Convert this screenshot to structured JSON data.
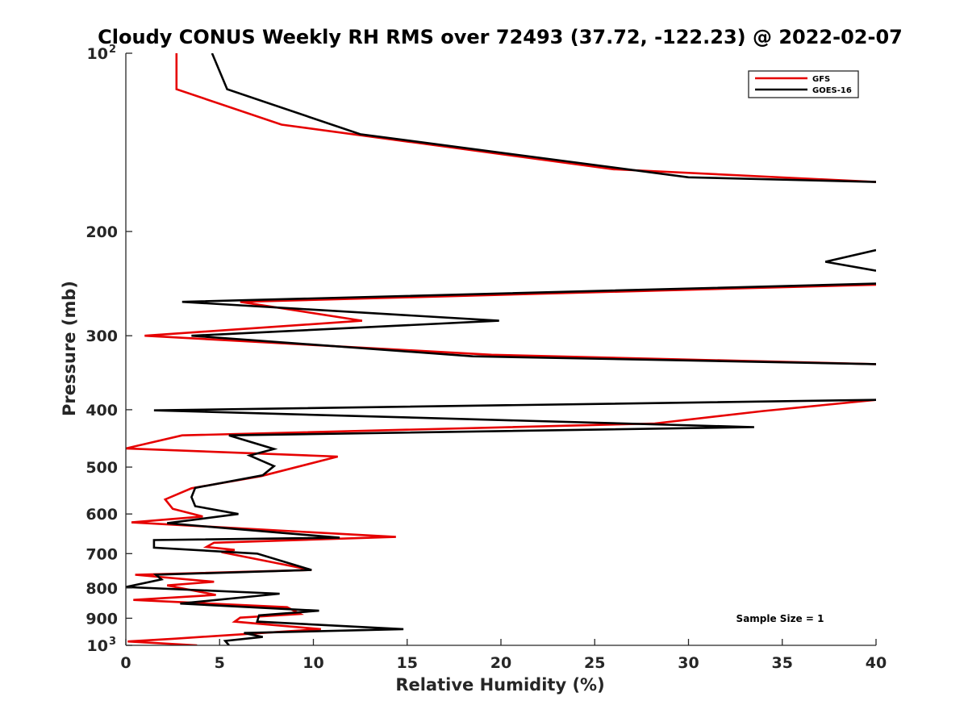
{
  "chart_data": {
    "type": "line",
    "title": "Cloudy CONUS Weekly RH RMS over 72493 (37.72, -122.23) @ 2022-02-07",
    "xlabel": "Relative Humidity (%)",
    "ylabel": "Pressure (mb)",
    "xlim": [
      0,
      40
    ],
    "ylim": [
      100,
      1000
    ],
    "y_scale": "log",
    "y_reversed": true,
    "x_ticks": [
      0,
      5,
      10,
      15,
      20,
      25,
      30,
      35,
      40
    ],
    "x_tick_labels": [
      "0",
      "5",
      "10",
      "15",
      "20",
      "25",
      "30",
      "35",
      "40"
    ],
    "y_ticks": [
      100,
      200,
      300,
      400,
      500,
      600,
      700,
      800,
      900,
      1000
    ],
    "y_tick_labels": [
      {
        "base": "10",
        "exp": "2"
      },
      {
        "text": "200"
      },
      {
        "text": "300"
      },
      {
        "text": "400"
      },
      {
        "text": "500"
      },
      {
        "text": "600"
      },
      {
        "text": "700"
      },
      {
        "text": "800"
      },
      {
        "text": "900"
      },
      {
        "base": "10",
        "exp": "3"
      }
    ],
    "grid": false,
    "legend_position": "top-right",
    "annotation": "Sample Size = 1",
    "series": [
      {
        "name": "GFS",
        "color": "#e60000",
        "segments": [
          [
            [
              2.7,
              100
            ],
            [
              2.7,
              115
            ],
            [
              8.3,
              132
            ],
            [
              26,
              157
            ],
            [
              40,
              165
            ]
          ],
          [
            [
              40,
              246
            ],
            [
              6.1,
              263
            ],
            [
              12.6,
              283
            ],
            [
              1.0,
              300
            ],
            [
              19.5,
              323
            ],
            [
              40,
              335
            ]
          ],
          [
            [
              40,
              385
            ],
            [
              34,
              402
            ],
            [
              28.2,
              422
            ],
            [
              3,
              442
            ],
            [
              0,
              465
            ],
            [
              11.3,
              480
            ],
            [
              7.2,
              518
            ],
            [
              3.5,
              543
            ],
            [
              2.1,
              567
            ],
            [
              2.5,
              588
            ],
            [
              4.1,
              606
            ],
            [
              0.3,
              620
            ],
            [
              14.4,
              656
            ],
            [
              4.7,
              671
            ],
            [
              4.3,
              682
            ],
            [
              5.8,
              690
            ],
            [
              5.1,
              696
            ],
            [
              9.9,
              746
            ],
            [
              0.5,
              760
            ],
            [
              4.7,
              781
            ],
            [
              2.2,
              792
            ],
            [
              4.8,
              822
            ],
            [
              0.4,
              838
            ],
            [
              8.6,
              862
            ],
            [
              9.3,
              885
            ],
            [
              6.1,
              898
            ],
            [
              5.8,
              912
            ],
            [
              10.4,
              939
            ],
            [
              2.5,
              975
            ],
            [
              0.1,
              985
            ],
            [
              3.8,
              1000
            ]
          ]
        ]
      },
      {
        "name": "GOES-16",
        "color": "#000000",
        "segments": [
          [
            [
              4.6,
              100
            ],
            [
              5.4,
              115
            ],
            [
              12.5,
              137
            ],
            [
              30,
              162
            ],
            [
              40,
              165
            ]
          ],
          [
            [
              40,
              215
            ],
            [
              37.3,
              225
            ],
            [
              40,
              233
            ]
          ],
          [
            [
              40,
              245
            ],
            [
              3,
              263
            ],
            [
              19.9,
              283
            ],
            [
              3.5,
              300
            ],
            [
              18.5,
              325
            ],
            [
              40,
              335
            ]
          ],
          [
            [
              40,
              385
            ],
            [
              1.5,
              401
            ],
            [
              33.5,
              428
            ],
            [
              5.5,
              442
            ],
            [
              7.9,
              466
            ],
            [
              6.6,
              478
            ],
            [
              7.9,
              498
            ],
            [
              7.3,
              516
            ],
            [
              3.7,
              542
            ],
            [
              3.5,
              562
            ],
            [
              3.7,
              582
            ],
            [
              6.0,
              600
            ],
            [
              2.2,
              622
            ],
            [
              11.4,
              658
            ],
            [
              1.5,
              664
            ],
            [
              1.5,
              684
            ],
            [
              7.0,
              700
            ],
            [
              9.9,
              746
            ],
            [
              1.6,
              760
            ],
            [
              1.9,
              774
            ],
            [
              0,
              797
            ],
            [
              8.2,
              818
            ],
            [
              2.9,
              850
            ],
            [
              10.3,
              874
            ],
            [
              7.1,
              890
            ],
            [
              7.0,
              912
            ],
            [
              14.8,
              939
            ],
            [
              6.3,
              953
            ],
            [
              7.3,
              968
            ],
            [
              5.3,
              983
            ],
            [
              5.5,
              1000
            ]
          ]
        ]
      }
    ]
  }
}
